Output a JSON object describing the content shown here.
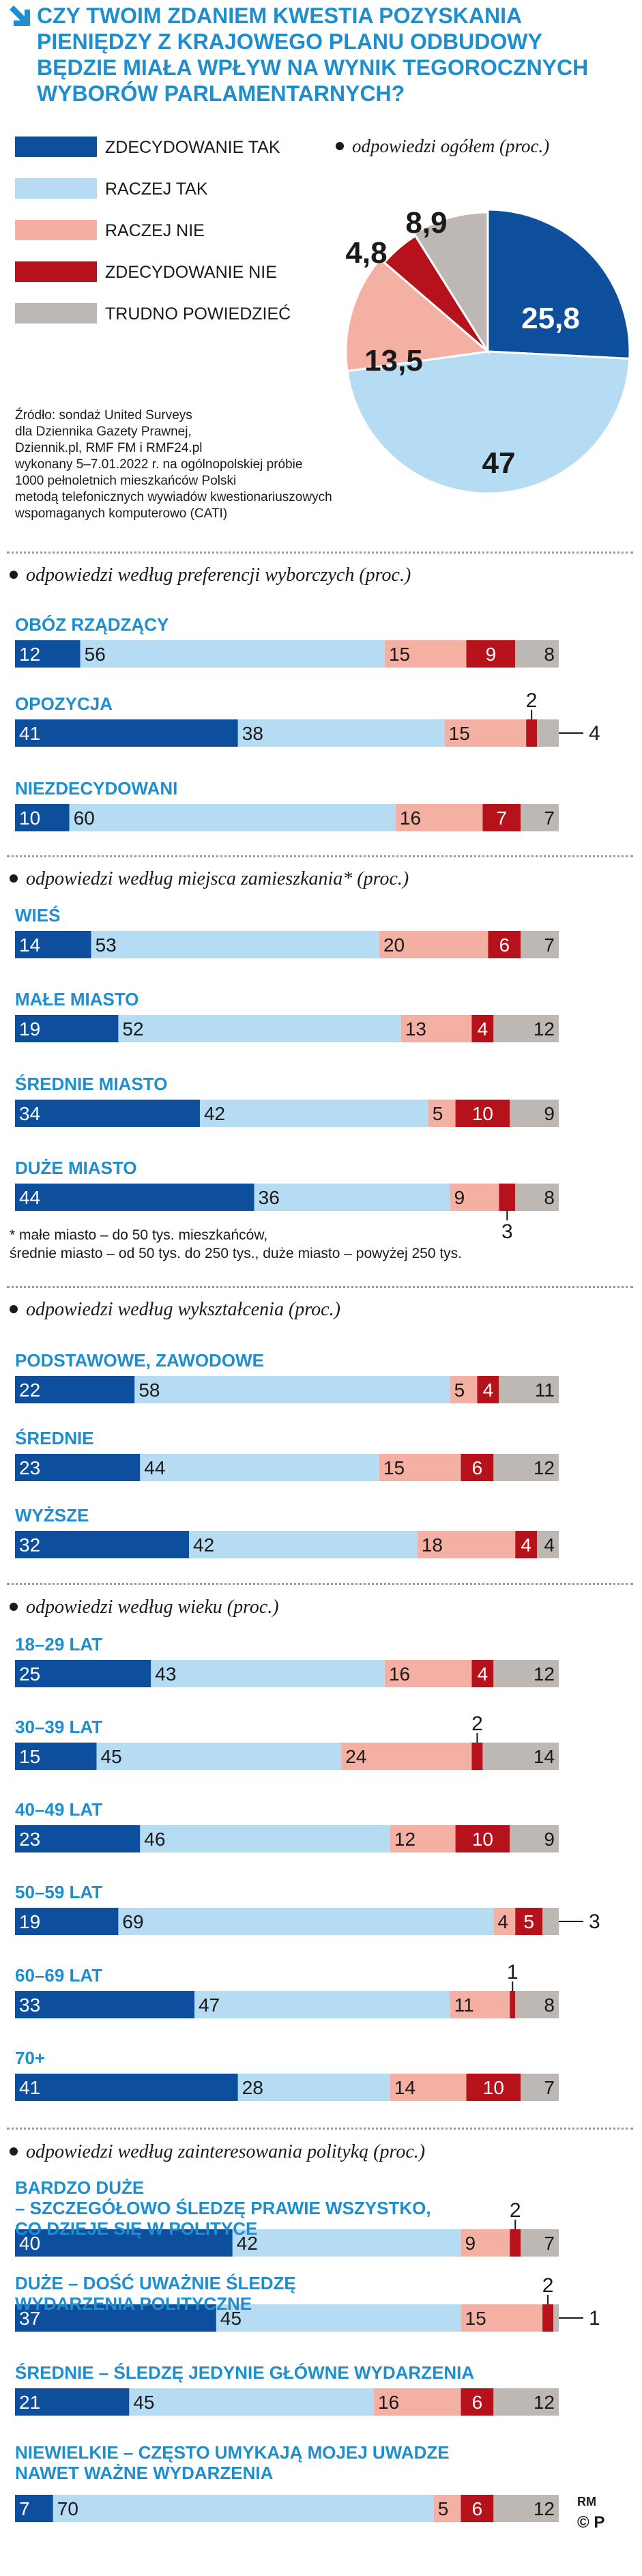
{
  "header": {
    "title_lines": [
      "CZY TWOIM ZDANIEM KWESTIA POZYSKANIA",
      "PIENIĘDZY Z KRAJOWEGO PLANU ODBUDOWY",
      "BĘDZIE MIAŁA WPŁYW NA WYNIK TEGOROCZNYCH",
      "WYBORÓW PARLAMENTARNYCH?"
    ]
  },
  "legend": [
    {
      "label": "ZDECYDOWANIE TAK",
      "color": "#0d4f9c"
    },
    {
      "label": "RACZEJ TAK",
      "color": "#b5dcf3"
    },
    {
      "label": "RACZEJ NIE",
      "color": "#f4b0a2"
    },
    {
      "label": "ZDECYDOWANIE NIE",
      "color": "#b5121b"
    },
    {
      "label": "TRUDNO POWIEDZIEĆ",
      "color": "#bdb8b4"
    }
  ],
  "pie_subtitle": "odpowiedzi ogółem (proc.)",
  "source_lines": [
    "Źródło: sondaż United Surveys",
    "dla Dziennika Gazety Prawnej,",
    "Dziennik.pl, RMF FM i RMF24.pl",
    "wykonany 5–7.01.2022 r. na ogólnopolskiej próbie",
    "1000 pełnoletnich mieszkańców Polski",
    "metodą telefonicznych wywiadów kwestionariuszowych",
    "wspomaganych komputerowo (CATI)"
  ],
  "footnote": {
    "lines": [
      "* małe miasto – do 50 tys. mieszkańców,",
      "średnie miasto – od 50 tys. do 250 tys., duże miasto – powyżej 250 tys."
    ]
  },
  "credit": "RM",
  "copyright": "© P",
  "chart_data": [
    {
      "type": "pie",
      "title": "odpowiedzi ogółem (proc.)",
      "categories": [
        "ZDECYDOWANIE TAK",
        "RACZEJ TAK",
        "RACZEJ NIE",
        "ZDECYDOWANIE NIE",
        "TRUDNO POWIEDZIEĆ"
      ],
      "values": [
        25.8,
        47,
        13.5,
        4.8,
        8.9
      ],
      "labels": [
        "25,8",
        "47",
        "13,5",
        "4,8",
        "8,9"
      ]
    },
    {
      "type": "bar",
      "stacked": true,
      "orientation": "horizontal",
      "title": "odpowiedzi według preferencji wyborczych (proc.)",
      "categories": [
        "OBÓZ RZĄDZĄCY",
        "OPOZYCJA",
        "NIEZDECYDOWANI"
      ],
      "series": [
        {
          "name": "ZDECYDOWANIE TAK",
          "values": [
            12,
            41,
            10
          ]
        },
        {
          "name": "RACZEJ TAK",
          "values": [
            56,
            38,
            60
          ]
        },
        {
          "name": "RACZEJ NIE",
          "values": [
            15,
            15,
            16
          ]
        },
        {
          "name": "ZDECYDOWANIE NIE",
          "values": [
            9,
            2,
            7
          ]
        },
        {
          "name": "TRUDNO POWIEDZIEĆ",
          "values": [
            8,
            4,
            7
          ]
        }
      ]
    },
    {
      "type": "bar",
      "stacked": true,
      "orientation": "horizontal",
      "title": "odpowiedzi według miejsca zamieszkania* (proc.)",
      "categories": [
        "WIEŚ",
        "MAŁE MIASTO",
        "ŚREDNIE MIASTO",
        "DUŻE MIASTO"
      ],
      "series": [
        {
          "name": "ZDECYDOWANIE TAK",
          "values": [
            14,
            19,
            34,
            44
          ]
        },
        {
          "name": "RACZEJ TAK",
          "values": [
            53,
            52,
            42,
            36
          ]
        },
        {
          "name": "RACZEJ NIE",
          "values": [
            20,
            13,
            5,
            9
          ]
        },
        {
          "name": "ZDECYDOWANIE NIE",
          "values": [
            6,
            4,
            10,
            3
          ]
        },
        {
          "name": "TRUDNO POWIEDZIEĆ",
          "values": [
            7,
            12,
            9,
            8
          ]
        }
      ]
    },
    {
      "type": "bar",
      "stacked": true,
      "orientation": "horizontal",
      "title": "odpowiedzi według wykształcenia (proc.)",
      "categories": [
        "PODSTAWOWE, ZAWODOWE",
        "ŚREDNIE",
        "WYŻSZE"
      ],
      "series": [
        {
          "name": "ZDECYDOWANIE TAK",
          "values": [
            22,
            23,
            32
          ]
        },
        {
          "name": "RACZEJ TAK",
          "values": [
            58,
            44,
            42
          ]
        },
        {
          "name": "RACZEJ NIE",
          "values": [
            5,
            15,
            18
          ]
        },
        {
          "name": "ZDECYDOWANIE NIE",
          "values": [
            4,
            6,
            4
          ]
        },
        {
          "name": "TRUDNO POWIEDZIEĆ",
          "values": [
            11,
            12,
            4
          ]
        }
      ]
    },
    {
      "type": "bar",
      "stacked": true,
      "orientation": "horizontal",
      "title": "odpowiedzi według wieku (proc.)",
      "categories": [
        "18–29 LAT",
        "30–39 LAT",
        "40–49 LAT",
        "50–59 LAT",
        "60–69 LAT",
        "70+"
      ],
      "series": [
        {
          "name": "ZDECYDOWANIE TAK",
          "values": [
            25,
            15,
            23,
            19,
            33,
            41
          ]
        },
        {
          "name": "RACZEJ TAK",
          "values": [
            43,
            45,
            46,
            69,
            47,
            28
          ]
        },
        {
          "name": "RACZEJ NIE",
          "values": [
            16,
            24,
            12,
            4,
            11,
            14
          ]
        },
        {
          "name": "ZDECYDOWANIE NIE",
          "values": [
            4,
            2,
            10,
            5,
            1,
            10
          ]
        },
        {
          "name": "TRUDNO POWIEDZIEĆ",
          "values": [
            12,
            14,
            9,
            3,
            8,
            7
          ]
        }
      ]
    },
    {
      "type": "bar",
      "stacked": true,
      "orientation": "horizontal",
      "title": "odpowiedzi według zainteresowania polityką (proc.)",
      "categories": [
        "BARDZO DUŻE – SZCZEGÓŁOWO ŚLEDZĘ PRAWIE WSZYSTKO, CO DZIEJE SIĘ W POLITYCE",
        "DUŻE – DOŚĆ UWAŻNIE ŚLEDZĘ WYDARZENIA POLITYCZNE",
        "ŚREDNIE – ŚLEDZĘ JEDYNIE GŁÓWNE WYDARZENIA",
        "NIEWIELKIE – CZĘSTO UMYKAJĄ MOJEJ UWADZE NAWET WAŻNE WYDARZENIA"
      ],
      "category_lines": [
        [
          "BARDZO DUŻE",
          "– SZCZEGÓŁOWO ŚLEDZĘ PRAWIE WSZYSTKO,",
          "CO DZIEJE SIĘ W POLITYCE"
        ],
        [
          "DUŻE – DOŚĆ UWAŻNIE ŚLEDZĘ",
          "WYDARZENIA POLITYCZNE"
        ],
        [
          "ŚREDNIE – ŚLEDZĘ JEDYNIE GŁÓWNE WYDARZENIA"
        ],
        [
          "NIEWIELKIE – CZĘSTO UMYKAJĄ MOJEJ UWADZE",
          "NAWET WAŻNE WYDARZENIA"
        ]
      ],
      "series": [
        {
          "name": "ZDECYDOWANIE TAK",
          "values": [
            40,
            37,
            21,
            7
          ]
        },
        {
          "name": "RACZEJ TAK",
          "values": [
            42,
            45,
            45,
            70
          ]
        },
        {
          "name": "RACZEJ NIE",
          "values": [
            9,
            15,
            16,
            5
          ]
        },
        {
          "name": "ZDECYDOWANIE NIE",
          "values": [
            2,
            2,
            6,
            6
          ]
        },
        {
          "name": "TRUDNO POWIEDZIEĆ",
          "values": [
            7,
            1,
            12,
            12
          ]
        }
      ]
    }
  ]
}
